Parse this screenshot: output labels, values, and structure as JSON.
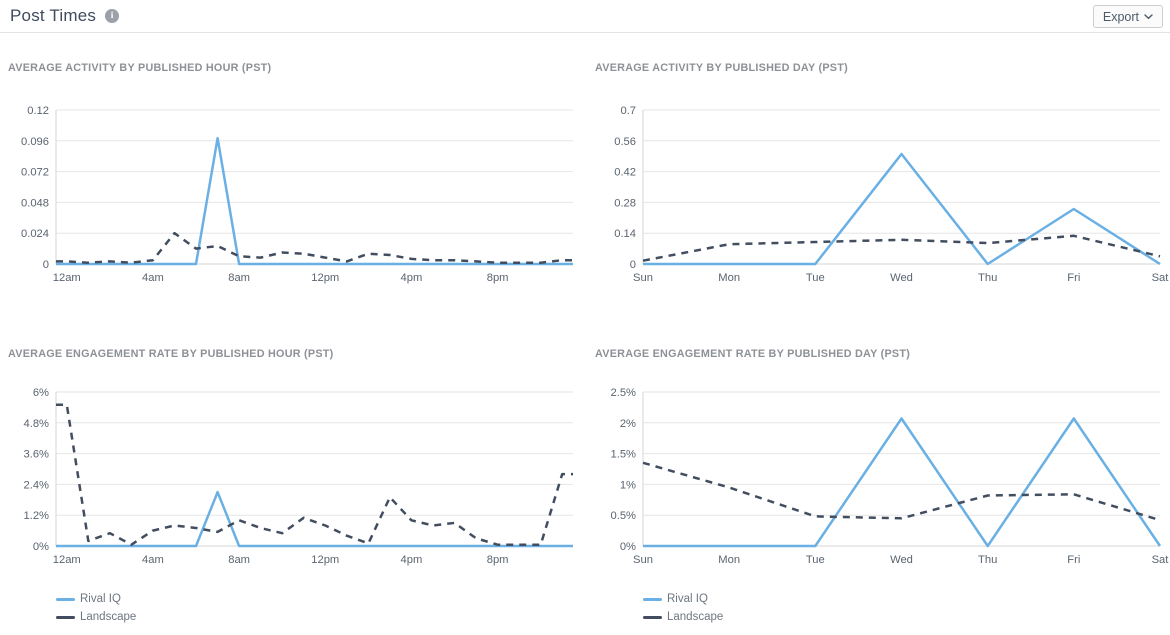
{
  "header": {
    "title": "Post Times",
    "info_glyph": "i",
    "export_label": "Export"
  },
  "colors": {
    "rival_iq": "#6ab0e4",
    "landscape": "#424e60",
    "grid_line": "#e6e6e6",
    "axis_line": "#d6d6d6"
  },
  "legend": {
    "items": [
      {
        "name": "Rival IQ",
        "color_key": "rival_iq"
      },
      {
        "name": "Landscape",
        "color_key": "landscape"
      }
    ]
  },
  "chart_data": [
    {
      "type": "line",
      "title": "AVERAGE ACTIVITY BY PUBLISHED HOUR (PST)",
      "point_mode": "center",
      "categories": [
        "12am",
        "1am",
        "2am",
        "3am",
        "4am",
        "5am",
        "6am",
        "7am",
        "8am",
        "9am",
        "10am",
        "11am",
        "12pm",
        "1pm",
        "2pm",
        "3pm",
        "4pm",
        "5pm",
        "6pm",
        "7pm",
        "8pm",
        "9pm",
        "10pm",
        "11pm"
      ],
      "x_ticks": [
        {
          "label": "12am",
          "index": 0
        },
        {
          "label": "4am",
          "index": 4
        },
        {
          "label": "8am",
          "index": 8
        },
        {
          "label": "12pm",
          "index": 12
        },
        {
          "label": "4pm",
          "index": 16
        },
        {
          "label": "8pm",
          "index": 20
        }
      ],
      "ylim": [
        0,
        0.12
      ],
      "y_ticks": [
        0,
        0.024,
        0.048,
        0.072,
        0.096,
        0.12
      ],
      "y_tick_labels": [
        "0",
        "0.024",
        "0.048",
        "0.072",
        "0.096",
        "0.12"
      ],
      "series": [
        {
          "name": "Rival IQ",
          "values": [
            0,
            0,
            0,
            0,
            0,
            0,
            0,
            0.098,
            0,
            0,
            0,
            0,
            0,
            0,
            0,
            0,
            0,
            0,
            0,
            0,
            0,
            0,
            0,
            0
          ]
        },
        {
          "name": "Landscape",
          "values": [
            0.002,
            0.001,
            0.002,
            0.001,
            0.003,
            0.024,
            0.012,
            0.014,
            0.006,
            0.005,
            0.009,
            0.008,
            0.005,
            0.002,
            0.008,
            0.007,
            0.004,
            0.003,
            0.003,
            0.002,
            0.001,
            0.001,
            0.001,
            0.003
          ]
        }
      ]
    },
    {
      "type": "line",
      "title": "AVERAGE ACTIVITY BY PUBLISHED DAY (PST)",
      "point_mode": "edge",
      "categories": [
        "Sun",
        "Mon",
        "Tue",
        "Wed",
        "Thu",
        "Fri",
        "Sat"
      ],
      "x_ticks": [
        {
          "label": "Sun",
          "index": 0
        },
        {
          "label": "Mon",
          "index": 1
        },
        {
          "label": "Tue",
          "index": 2
        },
        {
          "label": "Wed",
          "index": 3
        },
        {
          "label": "Thu",
          "index": 4
        },
        {
          "label": "Fri",
          "index": 5
        },
        {
          "label": "Sat",
          "index": 6
        }
      ],
      "ylim": [
        0,
        0.7
      ],
      "y_ticks": [
        0,
        0.14,
        0.28,
        0.42,
        0.56,
        0.7
      ],
      "y_tick_labels": [
        "0",
        "0.14",
        "0.28",
        "0.42",
        "0.56",
        "0.7"
      ],
      "series": [
        {
          "name": "Rival IQ",
          "values": [
            0,
            0,
            0,
            0.5,
            0,
            0.25,
            0
          ]
        },
        {
          "name": "Landscape",
          "values": [
            0.015,
            0.09,
            0.1,
            0.11,
            0.095,
            0.128,
            0.035
          ]
        }
      ]
    },
    {
      "type": "line",
      "title": "AVERAGE ENGAGEMENT RATE BY PUBLISHED HOUR (PST)",
      "point_mode": "center",
      "categories": [
        "12am",
        "1am",
        "2am",
        "3am",
        "4am",
        "5am",
        "6am",
        "7am",
        "8am",
        "9am",
        "10am",
        "11am",
        "12pm",
        "1pm",
        "2pm",
        "3pm",
        "4pm",
        "5pm",
        "6pm",
        "7pm",
        "8pm",
        "9pm",
        "10pm",
        "11pm"
      ],
      "x_ticks": [
        {
          "label": "12am",
          "index": 0
        },
        {
          "label": "4am",
          "index": 4
        },
        {
          "label": "8am",
          "index": 8
        },
        {
          "label": "12pm",
          "index": 12
        },
        {
          "label": "4pm",
          "index": 16
        },
        {
          "label": "8pm",
          "index": 20
        }
      ],
      "ylim": [
        0,
        6
      ],
      "y_ticks": [
        0,
        1.2,
        2.4,
        3.6,
        4.8,
        6
      ],
      "y_tick_labels": [
        "0%",
        "1.2%",
        "2.4%",
        "3.6%",
        "4.8%",
        "6%"
      ],
      "series": [
        {
          "name": "Rival IQ",
          "values": [
            0,
            0,
            0,
            0,
            0,
            0,
            0,
            2.1,
            0,
            0,
            0,
            0,
            0,
            0,
            0,
            0,
            0,
            0,
            0,
            0,
            0,
            0,
            0,
            0
          ]
        },
        {
          "name": "Landscape",
          "values": [
            5.5,
            0.2,
            0.5,
            0.05,
            0.6,
            0.8,
            0.7,
            0.55,
            1.0,
            0.7,
            0.5,
            1.1,
            0.8,
            0.4,
            0.1,
            1.9,
            1.0,
            0.8,
            0.9,
            0.3,
            0.05,
            0.05,
            0.05,
            2.8
          ]
        }
      ]
    },
    {
      "type": "line",
      "title": "AVERAGE ENGAGEMENT RATE BY PUBLISHED DAY (PST)",
      "point_mode": "edge",
      "categories": [
        "Sun",
        "Mon",
        "Tue",
        "Wed",
        "Thu",
        "Fri",
        "Sat"
      ],
      "x_ticks": [
        {
          "label": "Sun",
          "index": 0
        },
        {
          "label": "Mon",
          "index": 1
        },
        {
          "label": "Tue",
          "index": 2
        },
        {
          "label": "Wed",
          "index": 3
        },
        {
          "label": "Thu",
          "index": 4
        },
        {
          "label": "Fri",
          "index": 5
        },
        {
          "label": "Sat",
          "index": 6
        }
      ],
      "ylim": [
        0,
        2.5
      ],
      "y_ticks": [
        0,
        0.5,
        1,
        1.5,
        2,
        2.5
      ],
      "y_tick_labels": [
        "0%",
        "0.5%",
        "1%",
        "1.5%",
        "2%",
        "2.5%"
      ],
      "series": [
        {
          "name": "Rival IQ",
          "values": [
            0,
            0,
            0,
            2.07,
            0,
            2.07,
            0
          ]
        },
        {
          "name": "Landscape",
          "values": [
            1.35,
            0.95,
            0.48,
            0.45,
            0.82,
            0.84,
            0.42
          ]
        }
      ]
    }
  ]
}
